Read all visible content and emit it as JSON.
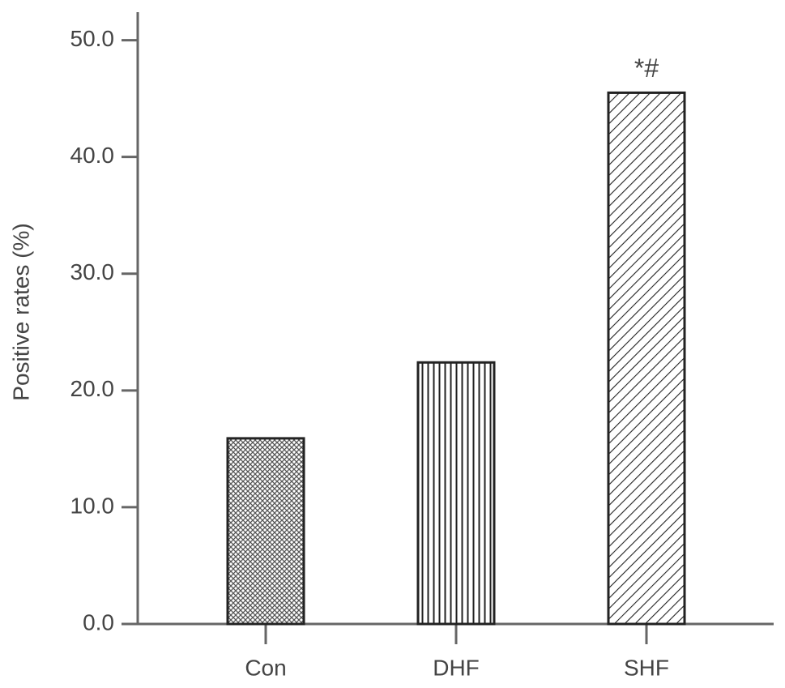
{
  "chart_data": {
    "type": "bar",
    "y_label": "Positive rates (%)",
    "categories": [
      "Con",
      "DHF",
      "SHF"
    ],
    "values": [
      15.9,
      22.4,
      45.5
    ],
    "hatches": [
      "dots",
      "vertical",
      "diagonal"
    ],
    "color": "#222222",
    "annotations": [
      "*#"
    ],
    "ylim": [
      0,
      52.4
    ],
    "yticks": [
      {
        "value": 0,
        "label": "0.0"
      },
      {
        "value": 10,
        "label": "10.0"
      },
      {
        "value": 20,
        "label": "20.0"
      },
      {
        "value": 30,
        "label": "30.0"
      },
      {
        "value": 40,
        "label": "40.0"
      },
      {
        "value": 50,
        "label": "50.0"
      }
    ]
  }
}
